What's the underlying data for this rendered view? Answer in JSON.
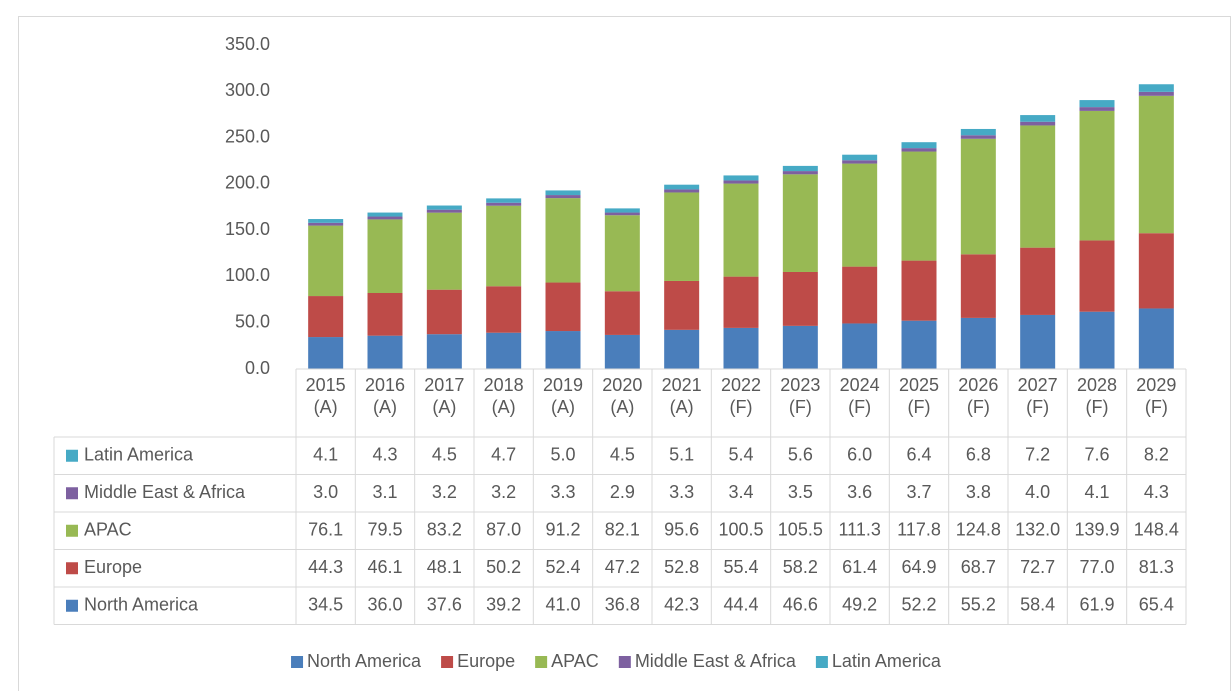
{
  "chart_data": {
    "type": "stacked_bar",
    "categories": [
      "2015 (A)",
      "2016 (A)",
      "2017 (A)",
      "2018 (A)",
      "2019 (A)",
      "2020 (A)",
      "2021 (A)",
      "2022 (F)",
      "2023 (F)",
      "2024 (F)",
      "2025 (F)",
      "2026 (F)",
      "2027 (F)",
      "2028 (F)",
      "2029 (F)"
    ],
    "series": [
      {
        "name": "North America",
        "color": "#4a7ebb",
        "values": [
          34.5,
          36,
          37.6,
          39.2,
          41,
          36.8,
          42.3,
          44.4,
          46.6,
          49.2,
          52.2,
          55.2,
          58.4,
          61.9,
          65.4
        ],
        "value_labels": [
          "34.5",
          "36.0",
          "37.6",
          "39.2",
          "41.0",
          "36.8",
          "42.3",
          "44.4",
          "46.6",
          "49.2",
          "52.2",
          "55.2",
          "58.4",
          "61.9",
          "65.4"
        ]
      },
      {
        "name": "Europe",
        "color": "#be4b48",
        "values": [
          44.3,
          46.1,
          48.1,
          50.2,
          52.4,
          47.2,
          52.8,
          55.4,
          58.2,
          61.4,
          64.9,
          68.7,
          72.7,
          77,
          81.3
        ],
        "value_labels": [
          "44.3",
          "46.1",
          "48.1",
          "50.2",
          "52.4",
          "47.2",
          "52.8",
          "55.4",
          "58.2",
          "61.4",
          "64.9",
          "68.7",
          "72.7",
          "77.0",
          "81.3"
        ]
      },
      {
        "name": "APAC",
        "color": "#98b954",
        "values": [
          76.1,
          79.5,
          83.2,
          87,
          91.2,
          82.1,
          95.6,
          100.5,
          105.5,
          111.3,
          117.8,
          124.8,
          132,
          139.9,
          148.4
        ],
        "value_labels": [
          "76.1",
          "79.5",
          "83.2",
          "87.0",
          "91.2",
          "82.1",
          "95.6",
          "100.5",
          "105.5",
          "111.3",
          "117.8",
          "124.8",
          "132.0",
          "139.9",
          "148.4"
        ]
      },
      {
        "name": "Middle East & Africa",
        "color": "#7d60a0",
        "values": [
          3,
          3.1,
          3.2,
          3.2,
          3.3,
          2.9,
          3.3,
          3.4,
          3.5,
          3.6,
          3.7,
          3.8,
          4,
          4.1,
          4.3
        ],
        "value_labels": [
          "3.0",
          "3.1",
          "3.2",
          "3.2",
          "3.3",
          "2.9",
          "3.3",
          "3.4",
          "3.5",
          "3.6",
          "3.7",
          "3.8",
          "4.0",
          "4.1",
          "4.3"
        ]
      },
      {
        "name": "Latin America",
        "color": "#46aac5",
        "values": [
          4.1,
          4.3,
          4.5,
          4.7,
          5,
          4.5,
          5.1,
          5.4,
          5.6,
          6,
          6.4,
          6.8,
          7.2,
          7.6,
          8.2
        ],
        "value_labels": [
          "4.1",
          "4.3",
          "4.5",
          "4.7",
          "5.0",
          "4.5",
          "5.1",
          "5.4",
          "5.6",
          "6.0",
          "6.4",
          "6.8",
          "7.2",
          "7.6",
          "8.2"
        ]
      }
    ],
    "ylim": [
      0,
      350
    ],
    "yticks": [
      {
        "value": 0,
        "label": "0.0"
      },
      {
        "value": 50,
        "label": "50.0"
      },
      {
        "value": 100,
        "label": "100.0"
      },
      {
        "value": 150,
        "label": "150.0"
      },
      {
        "value": 200,
        "label": "200.0"
      },
      {
        "value": 250,
        "label": "250.0"
      },
      {
        "value": 300,
        "label": "300.0"
      },
      {
        "value": 350,
        "label": "350.0"
      }
    ],
    "grid": false,
    "legend": "bottom"
  }
}
